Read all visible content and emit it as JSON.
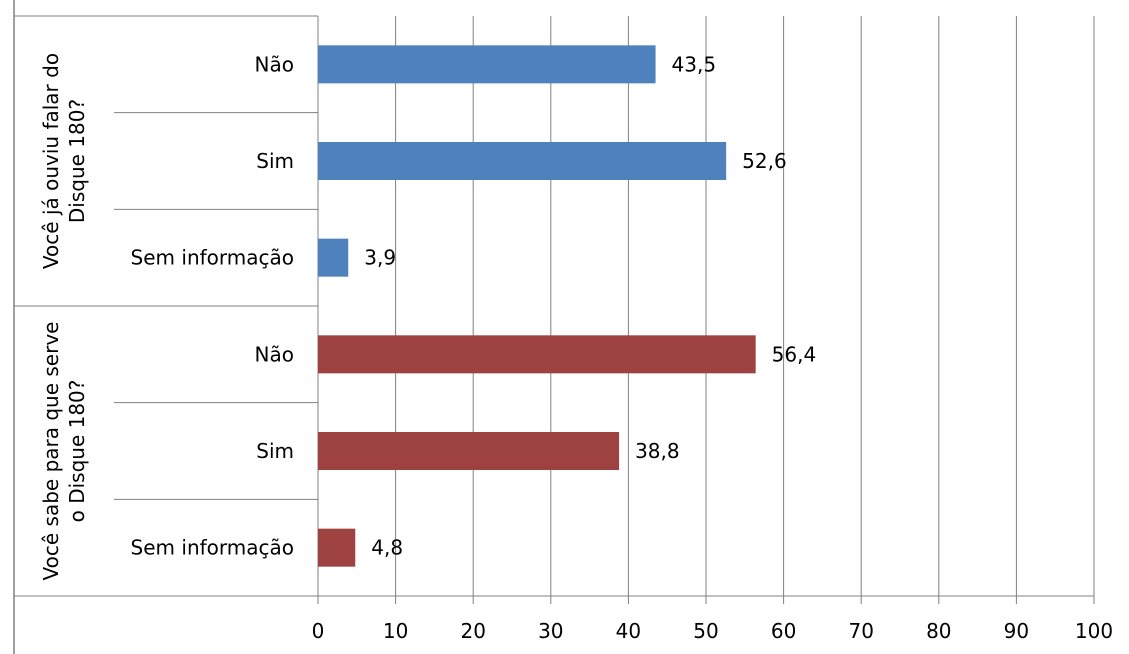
{
  "chart_data": {
    "type": "bar",
    "orientation": "horizontal",
    "xlim": [
      0,
      100
    ],
    "xticks": [
      0,
      10,
      20,
      30,
      40,
      50,
      60,
      70,
      80,
      90,
      100
    ],
    "grid": "vertical",
    "groups": [
      {
        "label_lines": [
          "Você já ouviu falar do",
          "Disque 180?"
        ],
        "color": "#4F81BD",
        "bars": [
          {
            "category": "Não",
            "value": 43.5,
            "label": "43,5"
          },
          {
            "category": "Sim",
            "value": 52.6,
            "label": "52,6"
          },
          {
            "category": "Sem informação",
            "value": 3.9,
            "label": "3,9"
          }
        ]
      },
      {
        "label_lines": [
          "Você sabe para que serve",
          "o Disque 180?"
        ],
        "color": "#9E4241",
        "bars": [
          {
            "category": "Não",
            "value": 56.4,
            "label": "56,4"
          },
          {
            "category": "Sim",
            "value": 38.8,
            "label": "38,8"
          },
          {
            "category": "Sem informação",
            "value": 4.8,
            "label": "4,8"
          }
        ]
      }
    ]
  }
}
